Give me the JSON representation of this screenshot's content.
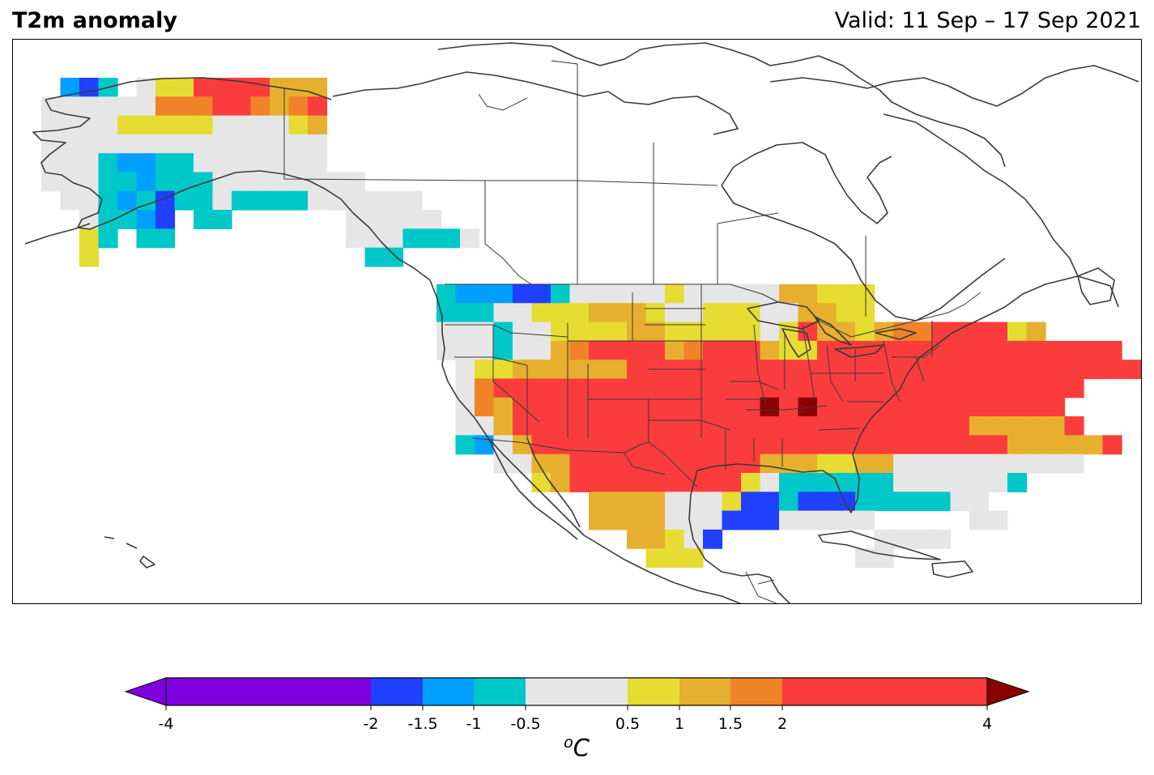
{
  "header": {
    "title": "T2m anomaly",
    "valid": "Valid: 11 Sep – 17 Sep 2021"
  },
  "colors": {
    "lt_m4": "#a010e0",
    "m4_m2": "#8000e0",
    "m2_m15": "#2040ff",
    "m15_m1": "#00a0ff",
    "m1_m05": "#00c8c8",
    "m05_05": "#e6e6e6",
    "p05_1": "#e6dc32",
    "p1_15": "#e6af2d",
    "p15_2": "#f08228",
    "p2_4": "#fa3c3c",
    "gt_4": "#8b0000"
  },
  "colorbar": {
    "unit": "C",
    "unit_sup": "o",
    "ticks": [
      "-4",
      "-2",
      "-1.5",
      "-1",
      "-0.5",
      "0.5",
      "1",
      "1.5",
      "2",
      "4"
    ]
  }
}
